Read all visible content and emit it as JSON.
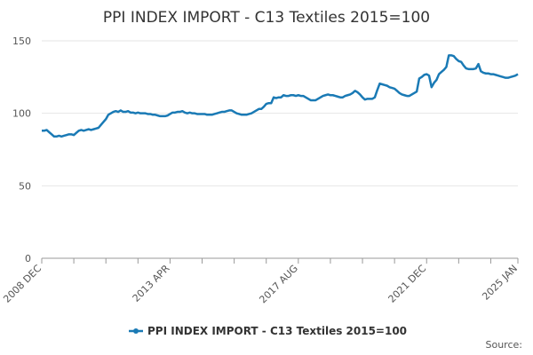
{
  "chart_data": {
    "type": "line",
    "title": "PPI INDEX IMPORT - C13 Textiles 2015=100",
    "source_label": "Source:",
    "categories": [
      "2008 DEC",
      null,
      null,
      null,
      null,
      null,
      null,
      null,
      null,
      null,
      null,
      null,
      null,
      null,
      null,
      null,
      null,
      null,
      null,
      null,
      null,
      null,
      null,
      null,
      null,
      null,
      null,
      null,
      null,
      null,
      null,
      null,
      null,
      null,
      null,
      null,
      null,
      null,
      null,
      null,
      null,
      null,
      null,
      null,
      null,
      null,
      null,
      null,
      null,
      null,
      null,
      null,
      "2013 APR",
      null,
      null,
      null,
      null,
      null,
      null,
      null,
      null,
      null,
      null,
      null,
      null,
      null,
      null,
      null,
      null,
      null,
      null,
      null,
      null,
      null,
      null,
      null,
      null,
      null,
      null,
      null,
      null,
      null,
      null,
      null,
      null,
      null,
      null,
      null,
      null,
      null,
      null,
      null,
      null,
      null,
      null,
      null,
      null,
      null,
      null,
      null,
      null,
      null,
      null,
      null,
      "2017 AUG",
      null,
      null,
      null,
      null,
      null,
      null,
      null,
      null,
      null,
      null,
      null,
      null,
      null,
      null,
      null,
      null,
      null,
      null,
      null,
      null,
      null,
      null,
      null,
      null,
      null,
      null,
      null,
      null,
      null,
      null,
      null,
      null,
      null,
      null,
      null,
      null,
      null,
      null,
      null,
      null,
      null,
      null,
      null,
      null,
      null,
      null,
      null,
      null,
      null,
      null,
      null,
      "2021 DEC",
      null,
      null,
      null,
      null,
      null,
      null,
      null,
      null,
      null,
      null,
      null,
      null,
      null,
      null,
      null,
      null,
      null,
      null,
      null,
      null,
      null,
      null,
      null,
      null,
      null,
      null,
      null,
      null,
      null,
      null,
      null,
      null,
      null,
      null,
      null,
      null,
      "2025 JAN"
    ],
    "series": [
      {
        "name": "PPI INDEX IMPORT - C13 Textiles 2015=100",
        "color": "#1a7ab5",
        "values": [
          88,
          88,
          88.5,
          87,
          85.5,
          84,
          84,
          84.5,
          84,
          84.5,
          85,
          85.5,
          85.5,
          85,
          86.5,
          88,
          88.5,
          88,
          88.5,
          89,
          88.5,
          89,
          89.5,
          90,
          92,
          94,
          96,
          99,
          100,
          101,
          101.5,
          101,
          102,
          101,
          101,
          101.5,
          100.5,
          100.5,
          100,
          100.5,
          100,
          100,
          100,
          99.5,
          99.5,
          99,
          99,
          98.5,
          98,
          98,
          98,
          98.5,
          99.5,
          100.5,
          100.5,
          101,
          101,
          101.5,
          100.5,
          100,
          100.5,
          100,
          100,
          99.5,
          99.5,
          99.5,
          99.5,
          99,
          99,
          99,
          99.5,
          100,
          100.5,
          101,
          101,
          101.5,
          102,
          102,
          101,
          100,
          99.5,
          99,
          99,
          99,
          99.5,
          100,
          101,
          102,
          103,
          103,
          104.5,
          106.5,
          107,
          107,
          111,
          110.5,
          111,
          111,
          112.5,
          112,
          112,
          112.5,
          112.5,
          112,
          112.5,
          112,
          112,
          111,
          110,
          109,
          109,
          109,
          110,
          111,
          112,
          112.5,
          113,
          112.5,
          112.5,
          112,
          111.5,
          111,
          111,
          112,
          112.5,
          113,
          114,
          115.5,
          114.5,
          113,
          111,
          109.5,
          110,
          110,
          110,
          111,
          116,
          120.5,
          120,
          119.5,
          119,
          118,
          117.5,
          117,
          115.5,
          114,
          113,
          112.5,
          112,
          112,
          113,
          114,
          115,
          124,
          125,
          126.5,
          127,
          126,
          118,
          121,
          123,
          127,
          128.5,
          130,
          132,
          140,
          140,
          139.5,
          137.5,
          136,
          135.5,
          133,
          131,
          130.5,
          130.5,
          130.5,
          131,
          134,
          129,
          128,
          127.5,
          127.5,
          127,
          127,
          126.5,
          126,
          125.5,
          125,
          124.5,
          124.5,
          125,
          125.5,
          126,
          127
        ]
      }
    ],
    "ylim": [
      0,
      150
    ],
    "yticks": [
      0,
      50,
      100,
      150
    ],
    "grid": true
  }
}
